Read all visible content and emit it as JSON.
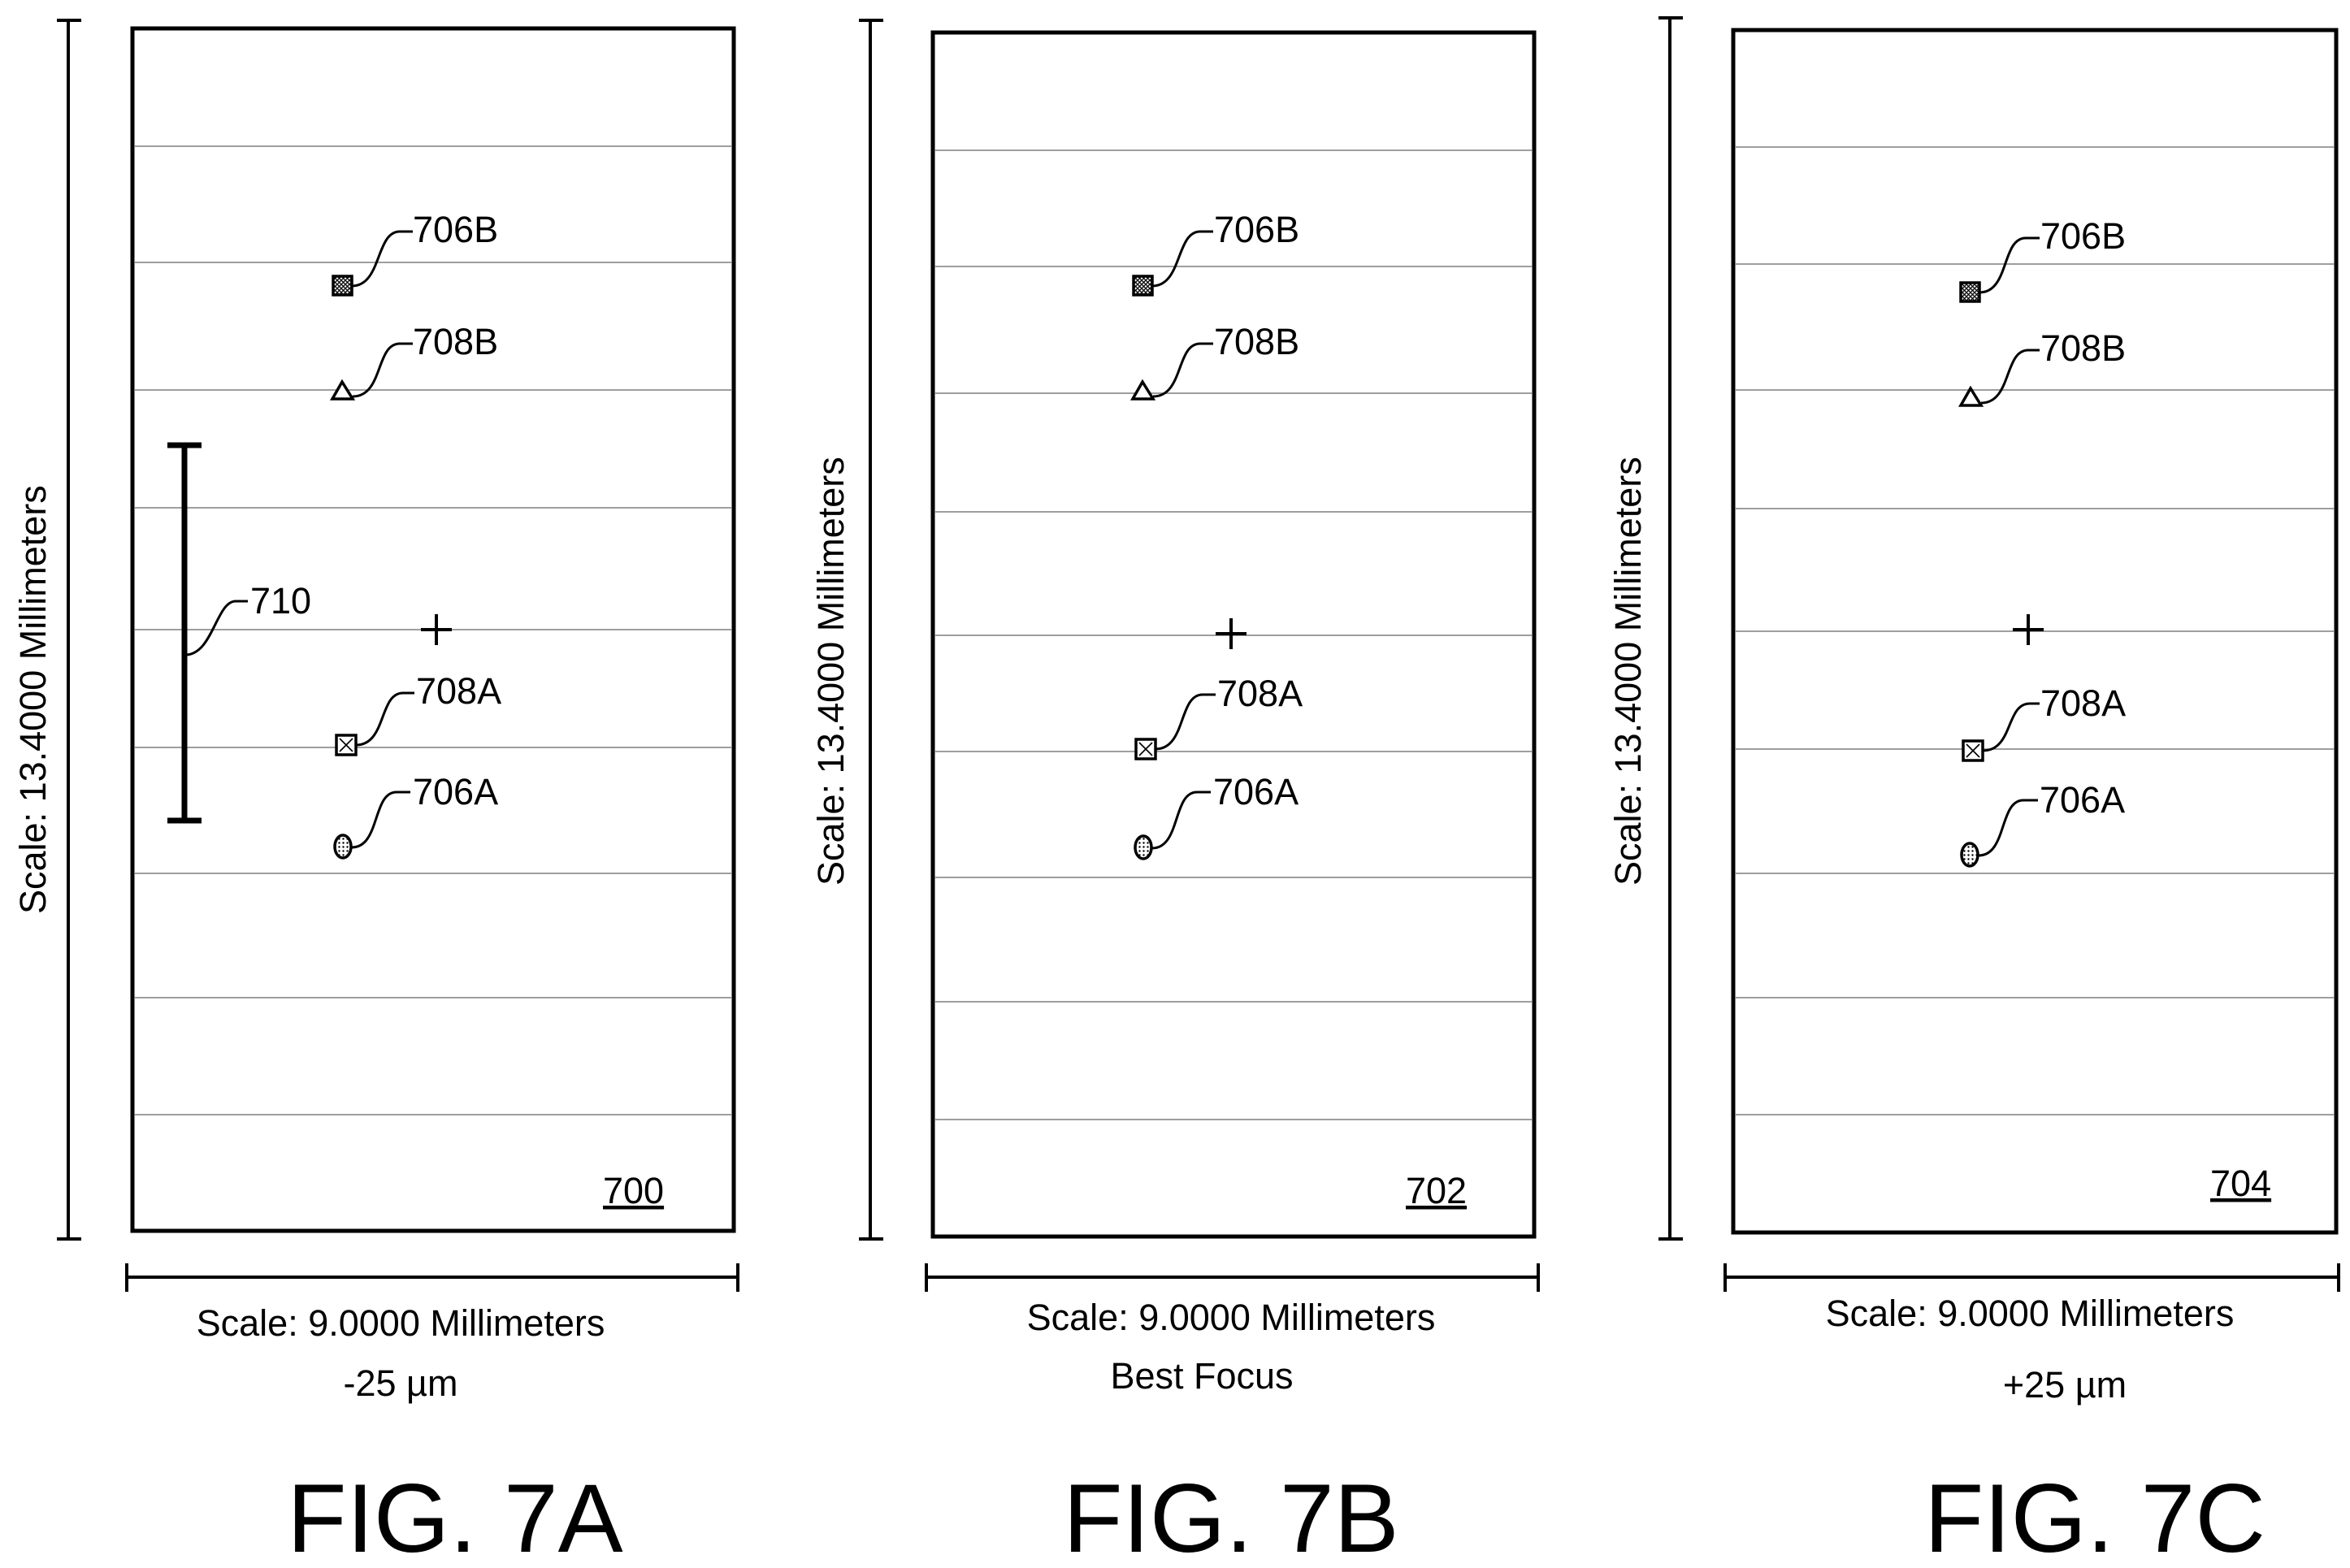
{
  "colors": {
    "ink": "#000000",
    "grid": "#7f7f7f",
    "background": "#ffffff"
  },
  "figures": [
    {
      "id": "7A",
      "caption": "FIG. 7A",
      "ref_number": "700",
      "vertical_scale": "Scale: 13.4000 Millimeters",
      "horizontal_scale": "Scale: 9.0000 Millimeters",
      "condition": "-25 µm",
      "labels": {
        "706B": "706B",
        "708B": "708B",
        "708A": "708A",
        "706A": "706A",
        "710": "710"
      }
    },
    {
      "id": "7B",
      "caption": "FIG. 7B",
      "ref_number": "702",
      "vertical_scale": "Scale: 13.4000 Millimeters",
      "horizontal_scale": "Scale: 9.0000 Millimeters",
      "condition": "Best Focus",
      "labels": {
        "706B": "706B",
        "708B": "708B",
        "708A": "708A",
        "706A": "706A"
      }
    },
    {
      "id": "7C",
      "caption": "FIG. 7C",
      "ref_number": "704",
      "vertical_scale": "Scale: 13.4000 Millimeters",
      "horizontal_scale": "Scale: 9.0000 Millimeters",
      "condition": "+25 µm",
      "labels": {
        "706B": "706B",
        "708B": "708B",
        "708A": "708A",
        "706A": "706A"
      }
    }
  ]
}
